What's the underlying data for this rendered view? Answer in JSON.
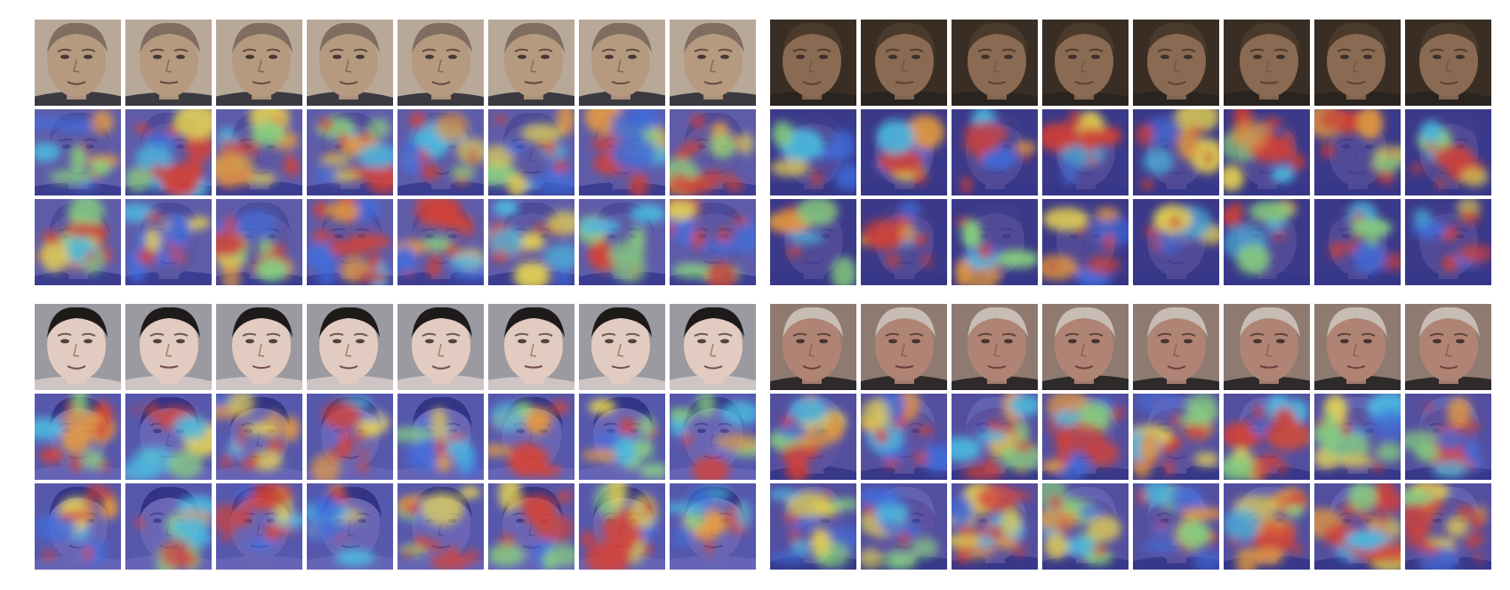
{
  "figure": {
    "background": "#ffffff",
    "panels": [
      {
        "id": "subject-older-man-dark-suit",
        "face": {
          "skin": "#b59a80",
          "hair": "#7f6e60",
          "bg": "#b8a898",
          "clothing": "#3a3a40"
        },
        "frames": 8,
        "rows": [
          "face-frame",
          "attention-map",
          "attention-map"
        ],
        "overlay_tint": "#3b3fb0"
      },
      {
        "id": "subject-man-dark-background",
        "face": {
          "skin": "#8a6a52",
          "hair": "#4a3a2c",
          "bg": "#3a2e24",
          "clothing": "#2a2420"
        },
        "frames": 8,
        "rows": [
          "face-frame",
          "attention-map",
          "attention-map"
        ],
        "overlay_tint": "#3b3fb0"
      },
      {
        "id": "subject-young-man-dark-hair",
        "face": {
          "skin": "#e2cbc0",
          "hair": "#1e1a1a",
          "bg": "#9a9aa0",
          "clothing": "#cfc4c4"
        },
        "frames": 8,
        "rows": [
          "face-frame",
          "attention-map",
          "attention-map"
        ],
        "overlay_tint": "#3b3fb0"
      },
      {
        "id": "subject-older-man-white-hair",
        "face": {
          "skin": "#b08474",
          "hair": "#c7bdb5",
          "bg": "#8f7a72",
          "clothing": "#2e2a2a"
        },
        "frames": 8,
        "rows": [
          "face-frame",
          "attention-map",
          "attention-map"
        ],
        "overlay_tint": "#3b3fb0"
      }
    ],
    "heatmap_colors": [
      "#2c2f9e",
      "#3f6fe0",
      "#49c6e6",
      "#8ee07a",
      "#f4e04a",
      "#f5a235",
      "#e2402a"
    ]
  }
}
